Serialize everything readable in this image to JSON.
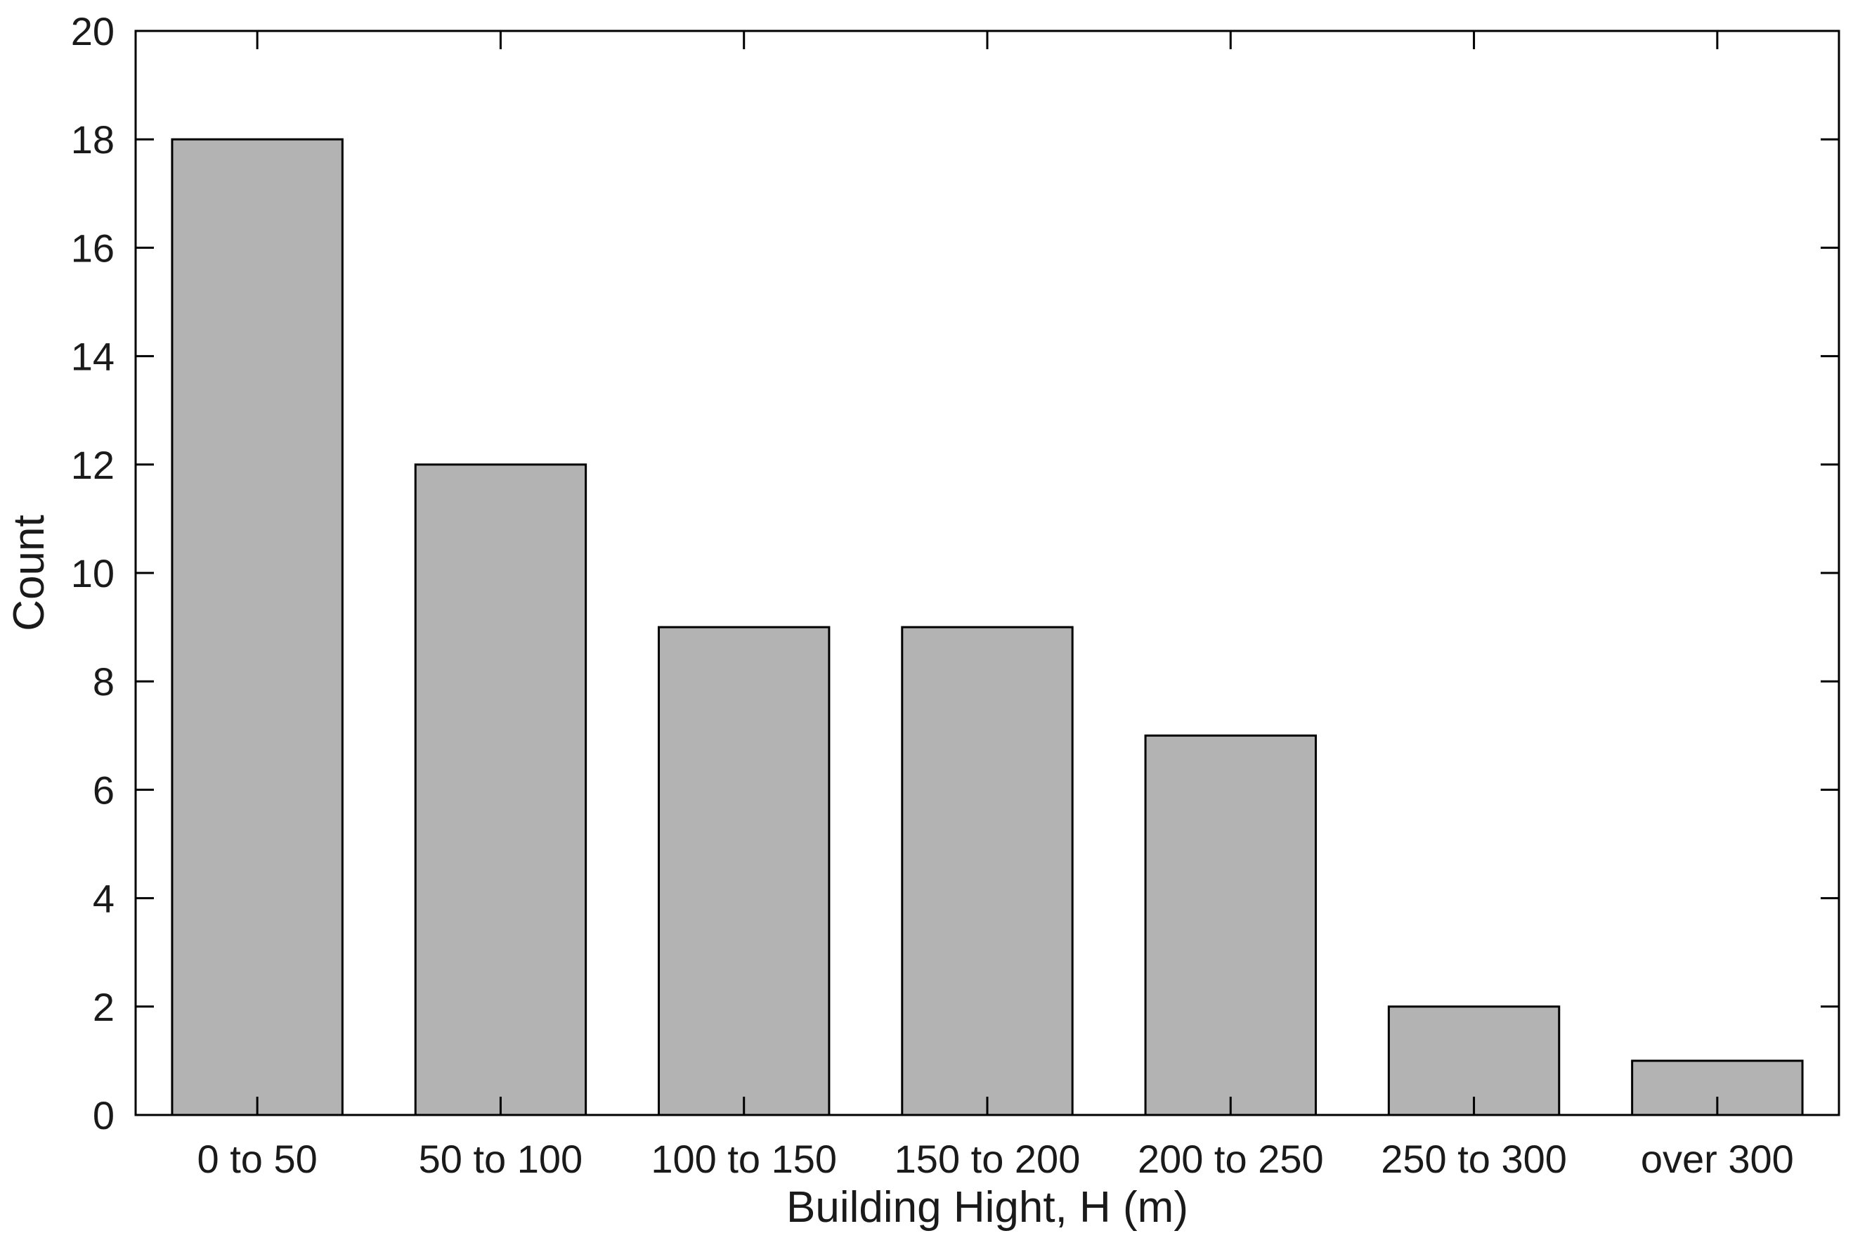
{
  "chart_data": {
    "type": "bar",
    "title": "",
    "xlabel": "Building Hight, H (m)",
    "ylabel": "Count",
    "categories": [
      "0 to 50",
      "50 to 100",
      "100 to 150",
      "150 to 200",
      "200 to 250",
      "250 to 300",
      "over 300"
    ],
    "values": [
      18,
      12,
      9,
      9,
      7,
      2,
      1
    ],
    "ylim": [
      0,
      20
    ],
    "yticks": [
      "0",
      "2",
      "4",
      "6",
      "8",
      "10",
      "12",
      "14",
      "16",
      "18",
      "20"
    ],
    "grid": false,
    "legend": "none",
    "bar_color": "#b3b3b3",
    "edge_color": "#000000"
  }
}
